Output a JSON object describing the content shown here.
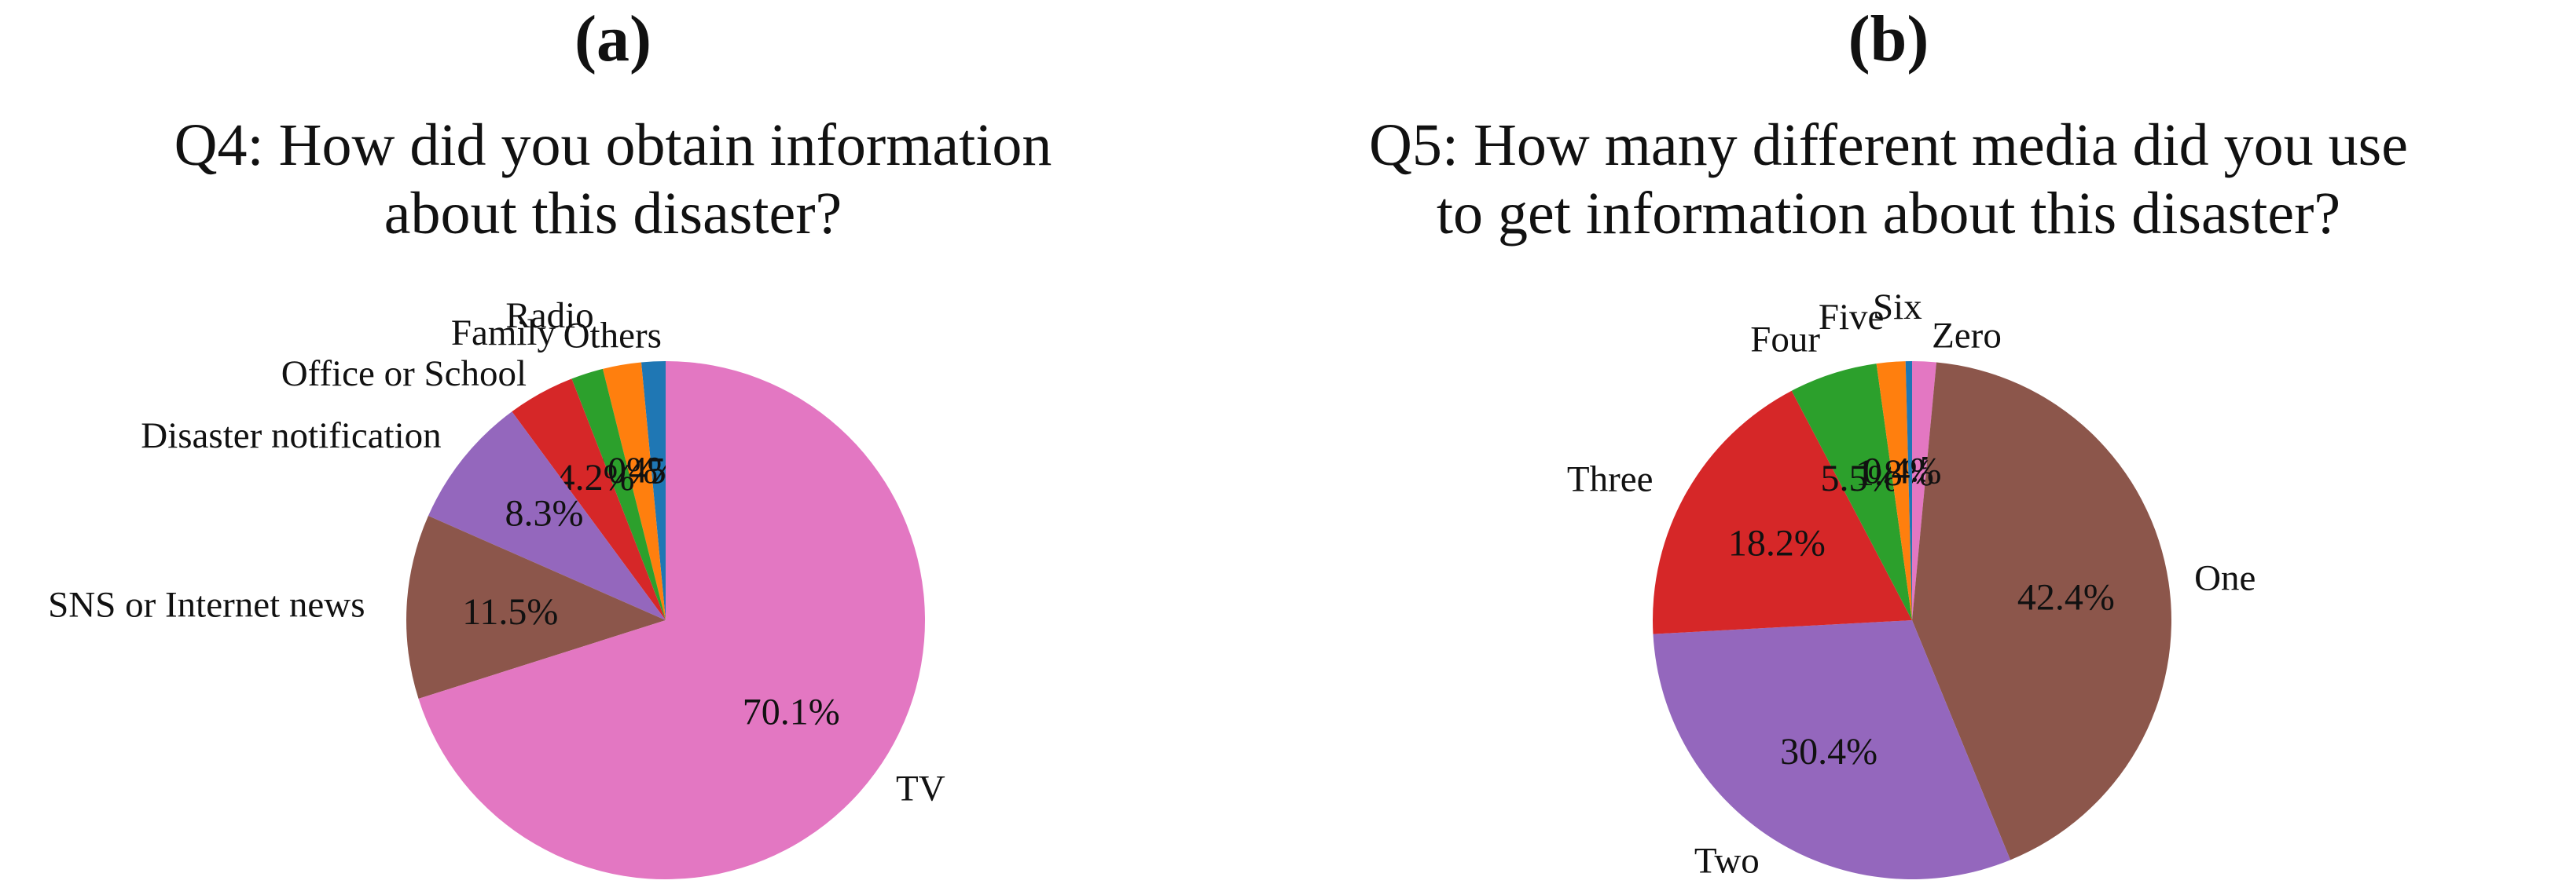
{
  "panels": [
    {
      "label": "(a)"
    },
    {
      "label": "(b)"
    }
  ],
  "chart_data": [
    {
      "type": "pie",
      "title_lines": [
        "Q4: How did you obtain information",
        "about this disaster?"
      ],
      "start_angle_deg": 90,
      "direction": "counterclockwise",
      "slices": [
        {
          "label": "Others",
          "value": 1.5,
          "value_label": "1.5%",
          "color": "#1f77b4"
        },
        {
          "label": "Radio",
          "value": 2.4,
          "value_label": "2.4%",
          "color": "#ff7f0e"
        },
        {
          "label": "Family",
          "value": 2.0,
          "value_label": "2.0%",
          "color": "#2ca02c"
        },
        {
          "label": "Office or School",
          "value": 4.2,
          "value_label": "4.2%",
          "color": "#d62728"
        },
        {
          "label": "Disaster notification",
          "value": 8.3,
          "value_label": "8.3%",
          "color": "#9467bd"
        },
        {
          "label": "SNS or Internet news",
          "value": 11.5,
          "value_label": "11.5%",
          "color": "#8c564b"
        },
        {
          "label": "TV",
          "value": 70.1,
          "value_label": "70.1%",
          "color": "#e377c2"
        }
      ]
    },
    {
      "type": "pie",
      "title_lines": [
        "Q5: How many different media did you use",
        "to get information about this disaster?"
      ],
      "start_angle_deg": 90,
      "direction": "clockwise",
      "slices": [
        {
          "label": "Zero",
          "value": 1.5,
          "value_label": "1.5%",
          "color": "#e377c2"
        },
        {
          "label": "One",
          "value": 42.4,
          "value_label": "42.4%",
          "color": "#8c564b"
        },
        {
          "label": "Two",
          "value": 30.4,
          "value_label": "30.4%",
          "color": "#9467bd"
        },
        {
          "label": "Three",
          "value": 18.2,
          "value_label": "18.2%",
          "color": "#d62728"
        },
        {
          "label": "Four",
          "value": 5.5,
          "value_label": "5.5%",
          "color": "#2ca02c"
        },
        {
          "label": "Five",
          "value": 1.8,
          "value_label": "1.8%",
          "color": "#ff7f0e"
        },
        {
          "label": "Six",
          "value": 0.4,
          "value_label": "0.4%",
          "color": "#1f77b4"
        }
      ]
    }
  ]
}
